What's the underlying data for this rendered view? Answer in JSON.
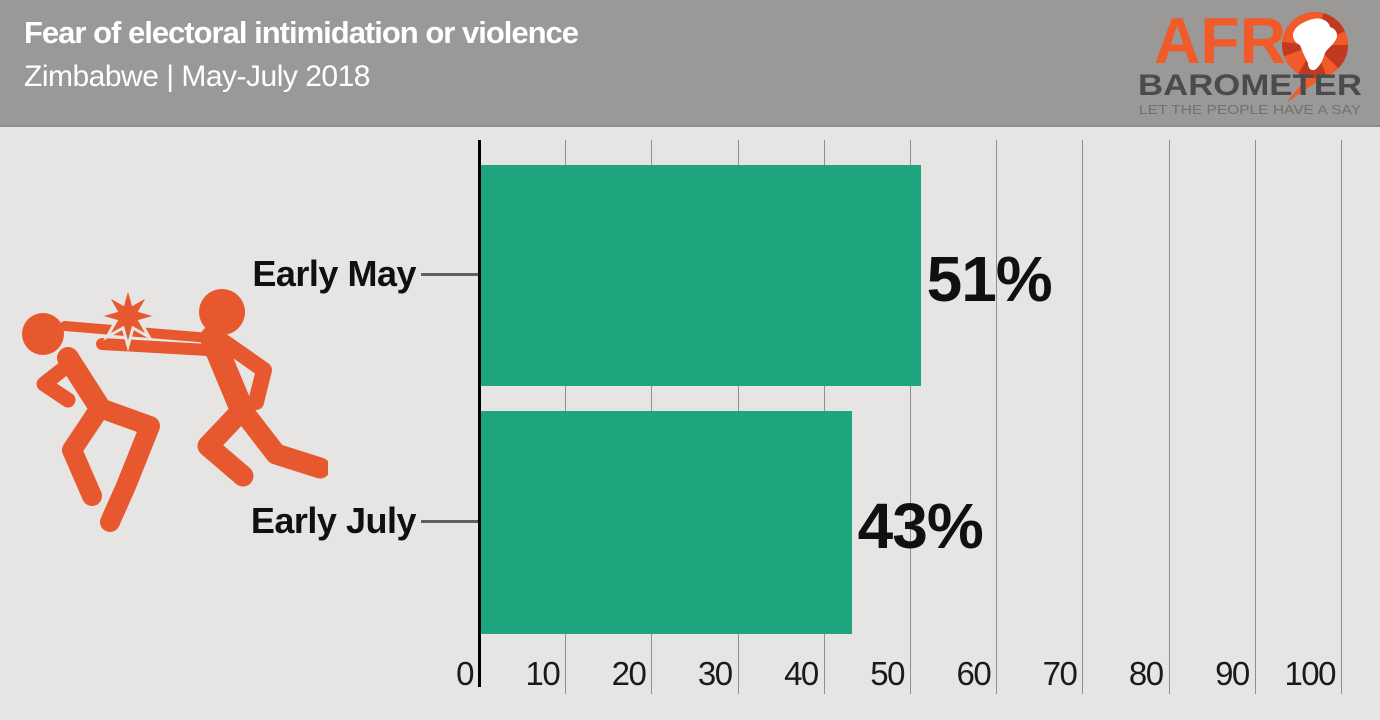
{
  "header": {
    "title": "Fear of electoral intimidation or violence",
    "subtitle": "Zimbabwe | May-July 2018",
    "bg_color": "#9A9998",
    "text_color": "#FFFFFF"
  },
  "logo": {
    "afr": "AFR",
    "barometer": "BAROMETER",
    "tagline": "LET THE PEOPLE HAVE A SAY",
    "orange": "#F15A29",
    "dark_red": "#C13A20",
    "barometer_color": "#4B4B4D",
    "tagline_color": "#71716F"
  },
  "icon": {
    "name": "violence-fight-icon",
    "color": "#E8582F"
  },
  "chart_data": {
    "type": "bar",
    "orientation": "horizontal",
    "title": "Fear of electoral intimidation or violence",
    "subtitle": "Zimbabwe | May-July 2018",
    "categories": [
      "Early May",
      "Early July"
    ],
    "values": [
      51,
      43
    ],
    "value_labels": [
      "51%",
      "43%"
    ],
    "xlim": [
      0,
      100
    ],
    "x_ticks": [
      0,
      10,
      20,
      30,
      40,
      50,
      60,
      70,
      80,
      90,
      100
    ],
    "grid": true,
    "legend": false,
    "bar_color": "#1FA57D",
    "background_color": "#E6E5E4",
    "gridline_color": "#8F8F8F",
    "axis_color": "#000000"
  }
}
